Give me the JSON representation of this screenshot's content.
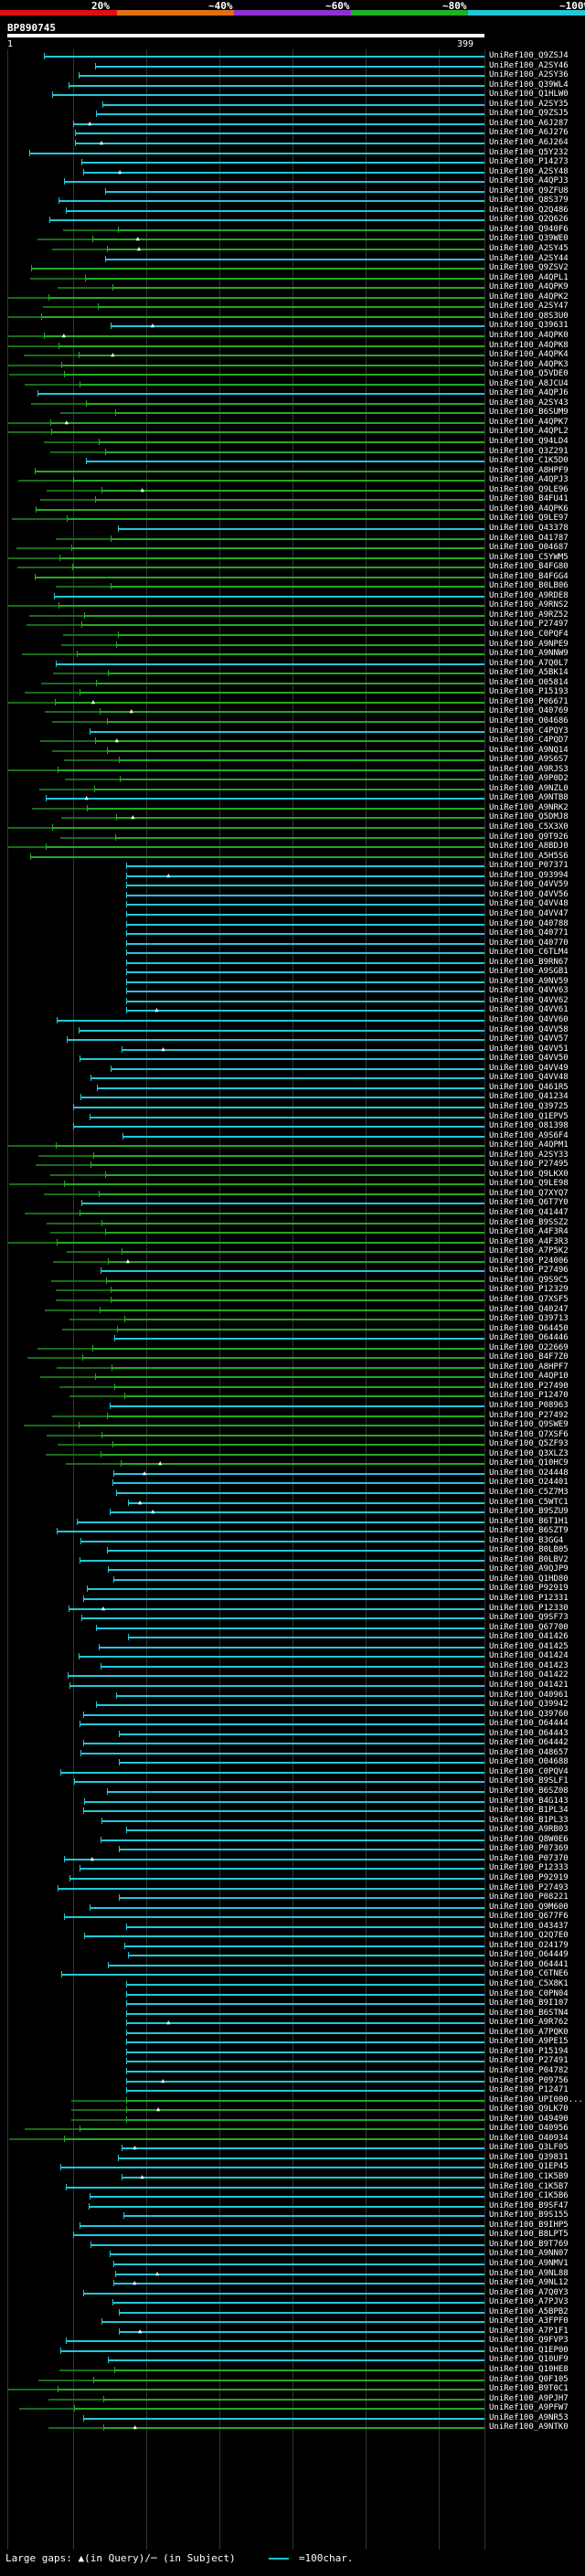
{
  "scale": {
    "segments": [
      {
        "label": "20%",
        "color": "#e01010"
      },
      {
        "label": "~40%",
        "color": "#e07010"
      },
      {
        "label": "~60%",
        "color": "#9030d0"
      },
      {
        "label": "~80%",
        "color": "#20b020"
      },
      {
        "label": "~100%",
        "color": "#20c8d8"
      }
    ]
  },
  "query": {
    "id": "BP890745",
    "start": "1",
    "end": "399"
  },
  "colors": {
    "cyan": "#20c8d8",
    "green": "#22aa22",
    "dim_green": "#1a6a1a"
  },
  "hits": [
    "UniRef100_Q9ZSJ4",
    "UniRef100_A2SY46",
    "UniRef100_A2SY36",
    "UniRef100_Q39WL4",
    "UniRef100_Q1HLW0",
    "UniRef100_A2SY35",
    "UniRef100_Q9ZSJ5",
    "UniRef100_A6J287",
    "UniRef100_A6J276",
    "UniRef100_A6J264",
    "UniRef100_Q5Y232",
    "UniRef100_P14273",
    "UniRef100_A2SY48",
    "UniRef100_A4QPJ3",
    "UniRef100_Q9ZFU8",
    "UniRef100_Q8S379",
    "UniRef100_Q2Q486",
    "UniRef100_Q2Q626",
    "UniRef100_Q940F6",
    "UniRef100_Q39WE0",
    "UniRef100_A2SY45",
    "UniRef100_A2SY44",
    "UniRef100_Q9ZSV2",
    "UniRef100_A4QPL1",
    "UniRef100_A4QPK9",
    "UniRef100_A4QPK2",
    "UniRef100_A2SY47",
    "UniRef100_Q8S3U0",
    "UniRef100_Q39631",
    "UniRef100_A4QPK0",
    "UniRef100_A4QPK8",
    "UniRef100_A4QPK4",
    "UniRef100_A4QPK3",
    "UniRef100_Q5VDE0",
    "UniRef100_A8JCU4",
    "UniRef100_A4QPJ6",
    "UniRef100_A2SY43",
    "UniRef100_B6SUM9",
    "UniRef100_A4QPK7",
    "UniRef100_A4QPL2",
    "UniRef100_Q94LD4",
    "UniRef100_Q3Z291",
    "UniRef100_C1K5D0",
    "UniRef100_A8HPF9",
    "UniRef100_A4QPJ3",
    "UniRef100_Q9LE96",
    "UniRef100_B4FU41",
    "UniRef100_A4QPK6",
    "UniRef100_Q9LE97",
    "UniRef100_Q43378",
    "UniRef100_O41787",
    "UniRef100_O04687",
    "UniRef100_C5YWM5",
    "UniRef100_B4FG80",
    "UniRef100_B4FGG4",
    "UniRef100_B0LB06",
    "UniRef100_A9RDE8",
    "UniRef100_A9RNS2",
    "UniRef100_A9RZ52",
    "UniRef100_P27497",
    "UniRef100_C0PQF4",
    "UniRef100_A9NPE9",
    "UniRef100_A9NNW9",
    "UniRef100_A7Q0L7",
    "UniRef100_A5BK14",
    "UniRef100_O05814",
    "UniRef100_P15193",
    "UniRef100_P06671",
    "UniRef100_O40769",
    "UniRef100_O04686",
    "UniRef100_C4PQY3",
    "UniRef100_C4PQD7",
    "UniRef100_A9NQ14",
    "UniRef100_A9S6S7",
    "UniRef100_A9RJS3",
    "UniRef100_A9P0D2",
    "UniRef100_A9NZL0",
    "UniRef100_A9NTB8",
    "UniRef100_A9NRK2",
    "UniRef100_Q5DMJ8",
    "UniRef100_C5X3X0",
    "UniRef100_Q9T926",
    "UniRef100_A8BDJ0",
    "UniRef100_A5H5S6",
    "UniRef100_P07371",
    "UniRef100_Q93994",
    "UniRef100_Q4VV59",
    "UniRef100_Q4VV56",
    "UniRef100_Q4VV48",
    "UniRef100_Q4VV47",
    "UniRef100_Q40788",
    "UniRef100_Q40771",
    "UniRef100_Q40770",
    "UniRef100_C6TLM4",
    "UniRef100_B9RN67",
    "UniRef100_A9SGB1",
    "UniRef100_A9NV59",
    "UniRef100_Q4VV63",
    "UniRef100_Q4VV62",
    "UniRef100_Q4VV61",
    "UniRef100_Q4VV60",
    "UniRef100_Q4VV58",
    "UniRef100_Q4VV57",
    "UniRef100_Q4VV51",
    "UniRef100_Q4VV50",
    "UniRef100_Q4VV49",
    "UniRef100_Q4VV48",
    "UniRef100_Q461R5",
    "UniRef100_Q41234",
    "UniRef100_Q39725",
    "UniRef100_Q1EPV5",
    "UniRef100_O81398",
    "UniRef100_A9S6F4",
    "UniRef100_A4QPM1",
    "UniRef100_A2SY33",
    "UniRef100_P27495",
    "UniRef100_Q9LKX0",
    "UniRef100_Q9LE98",
    "UniRef100_Q7XYQ7",
    "UniRef100_Q6T7Y0",
    "UniRef100_Q41447",
    "UniRef100_B9SSZ2",
    "UniRef100_A4F3R4",
    "UniRef100_A4F3R3",
    "UniRef100_A7P5K2",
    "UniRef100_P24006",
    "UniRef100_P27496",
    "UniRef100_Q9S9C5",
    "UniRef100_P12329",
    "UniRef100_Q7XSF5",
    "UniRef100_Q40247",
    "UniRef100_Q39713",
    "UniRef100_O64450",
    "UniRef100_O64446",
    "UniRef100_O22669",
    "UniRef100_B4F7Z0",
    "UniRef100_A8HPF7",
    "UniRef100_A4QP10",
    "UniRef100_P27490",
    "UniRef100_P12470",
    "UniRef100_P08963",
    "UniRef100_P27492",
    "UniRef100_Q9SWE9",
    "UniRef100_Q7XSF6",
    "UniRef100_Q5ZF93",
    "UniRef100_Q3XLZ3",
    "UniRef100_Q10HC9",
    "UniRef100_O24448",
    "UniRef100_O24401",
    "UniRef100_C5Z7M3",
    "UniRef100_C5WTC1",
    "UniRef100_B9SZU9",
    "UniRef100_B6T1H1",
    "UniRef100_B6SZT9",
    "UniRef100_B3GG4",
    "UniRef100_B0LB05",
    "UniRef100_B0LBV2",
    "UniRef100_A9QJP9",
    "UniRef100_Q1HD80",
    "UniRef100_P92919",
    "UniRef100_P12331",
    "UniRef100_P12330",
    "UniRef100_Q9SF73",
    "UniRef100_Q67700",
    "UniRef100_O41426",
    "UniRef100_O41425",
    "UniRef100_O41424",
    "UniRef100_O41423",
    "UniRef100_O41422",
    "UniRef100_O41421",
    "UniRef100_O40961",
    "UniRef100_Q39942",
    "UniRef100_Q39760",
    "UniRef100_O64444",
    "UniRef100_O64443",
    "UniRef100_O64442",
    "UniRef100_O48657",
    "UniRef100_O04688",
    "UniRef100_C0PQV4",
    "UniRef100_B9SLF1",
    "UniRef100_B6SZ08",
    "UniRef100_B4G143",
    "UniRef100_B1PL34",
    "UniRef100_B1PL33",
    "UniRef100_A9RB03",
    "UniRef100_Q8W0E6",
    "UniRef100_P07369",
    "UniRef100_P07370",
    "UniRef100_P12333",
    "UniRef100_P92919",
    "UniRef100_P27493",
    "UniRef100_P08221",
    "UniRef100_Q9M600",
    "UniRef100_Q677F6",
    "UniRef100_O43437",
    "UniRef100_Q2Q7E0",
    "UniRef100_O24179",
    "UniRef100_O64449",
    "UniRef100_O64441",
    "UniRef100_C6TNE6",
    "UniRef100_C5X8K1",
    "UniRef100_C0PN04",
    "UniRef100_B9I107",
    "UniRef100_B6STN4",
    "UniRef100_A9R762",
    "UniRef100_A7PQK0",
    "UniRef100_A9PE15",
    "UniRef100_P15194",
    "UniRef100_P27491",
    "UniRef100_P04782",
    "UniRef100_P09756",
    "UniRef100_P12471",
    "UniRef100_UPI000...",
    "UniRef100_Q9LK70",
    "UniRef100_O49490",
    "UniRef100_O40956",
    "UniRef100_O40934",
    "UniRef100_Q3LF05",
    "UniRef100_Q39831",
    "UniRef100_Q1EP45",
    "UniRef100_C1K5B9",
    "UniRef100_C1K5B7",
    "UniRef100_C1K5B6",
    "UniRef100_B9SF47",
    "UniRef100_B9S155",
    "UniRef100_B9IHP5",
    "UniRef100_B8LPT5",
    "UniRef100_B9T769",
    "UniRef100_A9NN07",
    "UniRef100_A9NMV1",
    "UniRef100_A9NL88",
    "UniRef100_A9NL12",
    "UniRef100_A7Q0Y3",
    "UniRef100_A7PJV3",
    "UniRef100_A5BPB2",
    "UniRef100_A3FPF0",
    "UniRef100_A7P1F1",
    "UniRef100_Q9FVP3",
    "UniRef100_Q1EP00",
    "UniRef100_Q10UF9",
    "UniRef100_Q10HE8",
    "UniRef100_Q0F105",
    "UniRef100_B9T0C1",
    "UniRef100_A9PJH7",
    "UniRef100_A9PFW7",
    "UniRef100_A9NR53",
    "UniRef100_A9NTK0"
  ],
  "footer": {
    "gaps_text": "Large gaps: ▲(in Query)/─ (in Subject)",
    "sample_text": "=100char."
  }
}
